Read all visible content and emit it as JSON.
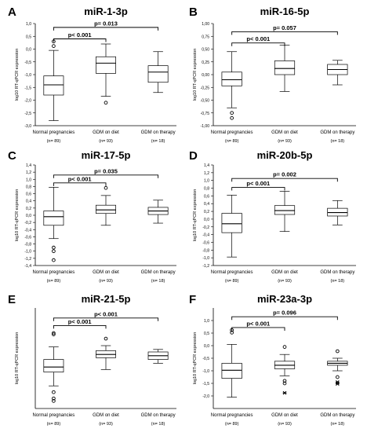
{
  "figure": {
    "group_labels": [
      "Normal pregnancies",
      "GDM on diet",
      "GDM on therapy"
    ],
    "group_ns": [
      "(n= 89)",
      "(n= 93)",
      "(n= 18)"
    ]
  },
  "chart_data": [
    {
      "type": "box",
      "panel": "A",
      "title": "miR-1-3p",
      "ylabel": "log10 RT-qPCR expression",
      "ylim": [
        -3.0,
        1.0
      ],
      "yticks": [
        1.0,
        0.5,
        0.0,
        -0.5,
        -1.0,
        -1.5,
        -2.0,
        -2.5,
        -3.0
      ],
      "ytick_labels": [
        "1,0",
        "0,5",
        "0,0",
        "-0,5",
        "-1,0",
        "-1,5",
        "-2,0",
        "-2,5",
        "-3,0"
      ],
      "boxes": [
        {
          "group": "Normal pregnancies",
          "whisker_low": -2.8,
          "q1": -1.8,
          "median": -1.4,
          "q3": -1.05,
          "whisker_high": -0.05,
          "outliers": [
            0.12,
            0.3
          ],
          "extremes": []
        },
        {
          "group": "GDM on diet",
          "whisker_low": -1.85,
          "q1": -0.95,
          "median": -0.55,
          "q3": -0.3,
          "whisker_high": 0.2,
          "outliers": [
            -2.1
          ],
          "extremes": []
        },
        {
          "group": "GDM on therapy",
          "whisker_low": -1.7,
          "q1": -1.3,
          "median": -0.9,
          "q3": -0.65,
          "whisker_high": -0.1,
          "outliers": [],
          "extremes": []
        }
      ],
      "annotations": [
        {
          "text": "p= 0.013",
          "from": 0,
          "to": 2,
          "y": 0.85
        },
        {
          "text": "p< 0.001",
          "from": 0,
          "to": 1,
          "y": 0.4
        }
      ]
    },
    {
      "type": "box",
      "panel": "B",
      "title": "miR-16-5p",
      "ylabel": "log10 RT-qPCR expression",
      "ylim": [
        -1.0,
        1.0
      ],
      "yticks": [
        1.0,
        0.75,
        0.5,
        0.25,
        0.0,
        -0.25,
        -0.5,
        -0.75,
        -1.0
      ],
      "ytick_labels": [
        "1,00",
        "0,75",
        "0,50",
        "0,25",
        "0,00",
        "-0,25",
        "-0,50",
        "-0,75",
        "-1,00"
      ],
      "boxes": [
        {
          "group": "Normal pregnancies",
          "whisker_low": -0.65,
          "q1": -0.22,
          "median": -0.1,
          "q3": 0.05,
          "whisker_high": 0.45,
          "outliers": [
            -0.75,
            -0.85
          ],
          "extremes": []
        },
        {
          "group": "GDM on diet",
          "whisker_low": -0.33,
          "q1": 0.0,
          "median": 0.12,
          "q3": 0.27,
          "whisker_high": 0.58,
          "outliers": [],
          "extremes": []
        },
        {
          "group": "GDM on therapy",
          "whisker_low": -0.2,
          "q1": 0.0,
          "median": 0.1,
          "q3": 0.2,
          "whisker_high": 0.28,
          "outliers": [],
          "extremes": []
        }
      ],
      "annotations": [
        {
          "text": "p= 0.057",
          "from": 0,
          "to": 2,
          "y": 0.84
        },
        {
          "text": "p< 0.001",
          "from": 0,
          "to": 1,
          "y": 0.62
        }
      ]
    },
    {
      "type": "box",
      "panel": "C",
      "title": "miR-17-5p",
      "ylabel": "log10 RT-qPCR expression",
      "ylim": [
        -1.4,
        1.4
      ],
      "yticks": [
        1.4,
        1.2,
        1.0,
        0.8,
        0.6,
        0.4,
        0.2,
        0.0,
        -0.2,
        -0.4,
        -0.6,
        -0.8,
        -1.0,
        -1.2,
        -1.4
      ],
      "ytick_labels": [
        "1,4",
        "1,2",
        "1,0",
        "0,8",
        "0,6",
        "0,4",
        "0,2",
        "0,0",
        "-0,2",
        "-0,4",
        "-0,6",
        "-0,8",
        "-1,0",
        "-1,2",
        "-1,4"
      ],
      "boxes": [
        {
          "group": "Normal pregnancies",
          "whisker_low": -0.65,
          "q1": -0.28,
          "median": -0.04,
          "q3": 0.12,
          "whisker_high": 0.78,
          "outliers": [
            -0.9,
            -1.0,
            -1.25
          ],
          "extremes": []
        },
        {
          "group": "GDM on diet",
          "whisker_low": -0.28,
          "q1": 0.05,
          "median": 0.15,
          "q3": 0.28,
          "whisker_high": 0.55,
          "outliers": [
            0.76
          ],
          "extremes": []
        },
        {
          "group": "GDM on therapy",
          "whisker_low": -0.22,
          "q1": 0.02,
          "median": 0.12,
          "q3": 0.22,
          "whisker_high": 0.42,
          "outliers": [],
          "extremes": []
        }
      ],
      "annotations": [
        {
          "text": "p= 0.035",
          "from": 0,
          "to": 2,
          "y": 1.12
        },
        {
          "text": "p< 0.001",
          "from": 0,
          "to": 1,
          "y": 0.9
        }
      ]
    },
    {
      "type": "box",
      "panel": "D",
      "title": "miR-20b-5p",
      "ylabel": "log10 RT-qPCR expression",
      "ylim": [
        -1.2,
        1.4
      ],
      "yticks": [
        1.4,
        1.2,
        1.0,
        0.8,
        0.6,
        0.4,
        0.2,
        0.0,
        -0.2,
        -0.4,
        -0.6,
        -0.8,
        -1.0,
        -1.2
      ],
      "ytick_labels": [
        "1,4",
        "1,2",
        "1,0",
        "0,8",
        "0,6",
        "0,4",
        "0,2",
        "0,0",
        "-0,2",
        "-0,4",
        "-0,6",
        "-0,8",
        "-1,0",
        "-1,2"
      ],
      "boxes": [
        {
          "group": "Normal pregnancies",
          "whisker_low": -0.98,
          "q1": -0.35,
          "median": -0.12,
          "q3": 0.15,
          "whisker_high": 0.62,
          "outliers": [],
          "extremes": []
        },
        {
          "group": "GDM on diet",
          "whisker_low": -0.32,
          "q1": 0.12,
          "median": 0.22,
          "q3": 0.35,
          "whisker_high": 0.72,
          "outliers": [],
          "extremes": []
        },
        {
          "group": "GDM on therapy",
          "whisker_low": -0.15,
          "q1": 0.08,
          "median": 0.17,
          "q3": 0.28,
          "whisker_high": 0.48,
          "outliers": [],
          "extremes": []
        }
      ],
      "annotations": [
        {
          "text": "p= 0.002",
          "from": 0,
          "to": 2,
          "y": 1.05
        },
        {
          "text": "p< 0.001",
          "from": 0,
          "to": 1,
          "y": 0.82
        }
      ]
    },
    {
      "type": "box",
      "panel": "E",
      "title": "miR-21-5p",
      "ylabel": "log10 RT-qPCR expression",
      "ylim": [
        -2.4,
        1.6
      ],
      "yticks": [],
      "ytick_labels": [],
      "boxes": [
        {
          "group": "Normal pregnancies",
          "whisker_low": -1.5,
          "q1": -0.95,
          "median": -0.75,
          "q3": -0.45,
          "whisker_high": 0.05,
          "outliers": [
            0.55,
            0.6,
            -1.75,
            -2.0,
            -2.1
          ],
          "extremes": []
        },
        {
          "group": "GDM on diet",
          "whisker_low": -0.85,
          "q1": -0.38,
          "median": -0.25,
          "q3": -0.1,
          "whisker_high": 0.1,
          "outliers": [
            0.38
          ],
          "extremes": []
        },
        {
          "group": "GDM on therapy",
          "whisker_low": -0.6,
          "q1": -0.45,
          "median": -0.3,
          "q3": -0.15,
          "whisker_high": -0.05,
          "outliers": [],
          "extremes": []
        }
      ],
      "annotations": [
        {
          "text": "p< 0.001",
          "from": 0,
          "to": 2,
          "y": 1.2
        },
        {
          "text": "p< 0.001",
          "from": 0,
          "to": 1,
          "y": 0.9
        }
      ]
    },
    {
      "type": "box",
      "panel": "F",
      "title": "miR-23a-3p",
      "ylabel": "log10 RT-qPCR expression",
      "ylim": [
        -2.5,
        1.5
      ],
      "yticks": [
        1.0,
        0.5,
        0.0,
        -0.5,
        -1.0,
        -1.5,
        -2.0
      ],
      "ytick_labels": [
        "1,0",
        "0,5",
        "0,0",
        "-0,5",
        "-1,0",
        "-1,5",
        "-2,0"
      ],
      "boxes": [
        {
          "group": "Normal pregnancies",
          "whisker_low": -2.05,
          "q1": -1.3,
          "median": -0.98,
          "q3": -0.7,
          "whisker_high": 0.05,
          "outliers": [
            0.52,
            0.62
          ],
          "extremes": []
        },
        {
          "group": "GDM on diet",
          "whisker_low": -1.2,
          "q1": -0.92,
          "median": -0.78,
          "q3": -0.62,
          "whisker_high": -0.35,
          "outliers": [
            -0.05,
            -1.4,
            -1.5
          ],
          "extremes": [
            -1.88
          ]
        },
        {
          "group": "GDM on therapy",
          "whisker_low": -1.0,
          "q1": -0.78,
          "median": -0.7,
          "q3": -0.62,
          "whisker_high": -0.5,
          "outliers": [
            -0.22,
            -1.25
          ],
          "extremes": [
            -1.45,
            -1.52
          ]
        }
      ],
      "annotations": [
        {
          "text": "p= 0.096",
          "from": 0,
          "to": 2,
          "y": 1.15
        },
        {
          "text": "p< 0.001",
          "from": 0,
          "to": 1,
          "y": 0.72
        }
      ]
    }
  ]
}
